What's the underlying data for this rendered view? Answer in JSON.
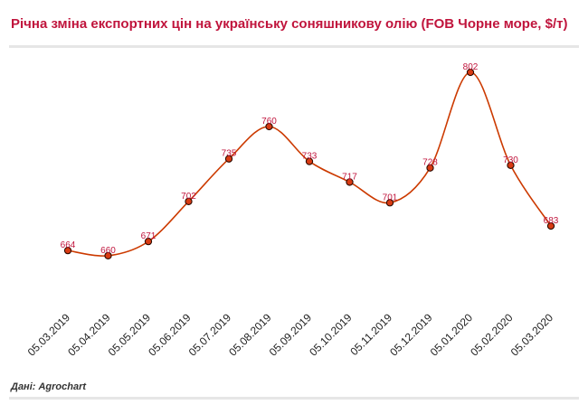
{
  "header": {
    "title": "Річна зміна експортних цін на українську соняшникову олію (FOB Чорне море, $/т)"
  },
  "footer": {
    "source": "Дані: Agrochart"
  },
  "colors": {
    "title": "#c0143c",
    "line": "#cc3a00",
    "marker_fill": "#d93b13",
    "marker_stroke": "#2a0a00",
    "label": "#c0143c"
  },
  "chart_data": {
    "type": "line",
    "title": "Річна зміна експортних цін на українську соняшникову олію (FOB Чорне море, $/т)",
    "xlabel": "",
    "ylabel": "",
    "categories": [
      "05.03.2019",
      "05.04.2019",
      "05.05.2019",
      "05.06.2019",
      "05.07.2019",
      "05.08.2019",
      "05.09.2019",
      "05.10.2019",
      "05.11.2019",
      "05.12.2019",
      "05.01.2020",
      "05.02.2020",
      "05.03.2020"
    ],
    "series": [
      {
        "values": [
          664,
          660,
          671,
          702,
          735,
          760,
          733,
          717,
          701,
          728,
          802,
          730,
          683
        ]
      }
    ],
    "ylim": [
      620,
      830
    ],
    "grid": false,
    "legend": "none",
    "smooth": true,
    "data_labels": true
  }
}
